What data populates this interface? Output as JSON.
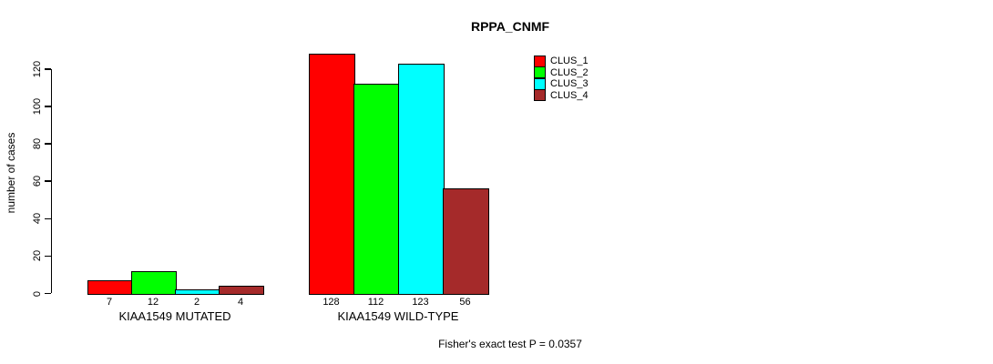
{
  "chart_data": {
    "type": "bar",
    "title": "RPPA_CNMF",
    "ylabel": "number of cases",
    "annotation": "Fisher's exact test P = 0.0357",
    "groups": [
      "KIAA1549 MUTATED",
      "KIAA1549 WILD-TYPE"
    ],
    "series": [
      {
        "name": "CLUS_1",
        "color": "#FF0000",
        "values": [
          7,
          128
        ]
      },
      {
        "name": "CLUS_2",
        "color": "#00FF00",
        "values": [
          12,
          112
        ]
      },
      {
        "name": "CLUS_3",
        "color": "#00FFFF",
        "values": [
          2,
          123
        ]
      },
      {
        "name": "CLUS_4",
        "color": "#A52A2A",
        "values": [
          4,
          56
        ]
      }
    ],
    "bar_value_labels": [
      [
        "7",
        "12",
        "2",
        "4"
      ],
      [
        "128",
        "112",
        "123",
        "56"
      ]
    ],
    "yticks": [
      0,
      20,
      40,
      60,
      80,
      100,
      120
    ],
    "ylim": [
      0,
      128
    ],
    "grid": false,
    "legend_position": "top-right",
    "axis_color": "#000000",
    "background_color": "#ffffff"
  }
}
